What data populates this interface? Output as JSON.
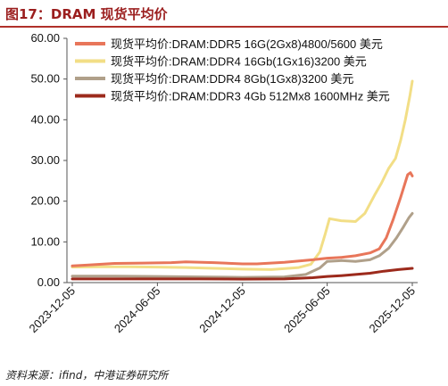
{
  "header": {
    "title": "图17：DRAM 现货平均价"
  },
  "footer": {
    "source": "资料来源：ifind，中港证券研究所"
  },
  "chart_data": {
    "type": "line",
    "title": "图17：DRAM 现货平均价",
    "xlabel": "",
    "ylabel": "",
    "ylim": [
      0,
      60
    ],
    "yticks": [
      "0.00",
      "10.00",
      "20.00",
      "30.00",
      "40.00",
      "50.00",
      "60.00"
    ],
    "xticks": [
      "2023-12-05",
      "2024-06-05",
      "2024-12-05",
      "2025-06-05",
      "2025-12-05"
    ],
    "grid": false,
    "legend_position": "top-right",
    "series": [
      {
        "name": "现货平均价:DRAM:DDR5 16G(2Gx8)4800/5600 美元",
        "color": "#e8765a",
        "width": 3,
        "points": [
          [
            "2023-12-05",
            4.1
          ],
          [
            "2024-01-05",
            4.3
          ],
          [
            "2024-03-05",
            4.7
          ],
          [
            "2024-05-05",
            4.8
          ],
          [
            "2024-07-05",
            4.9
          ],
          [
            "2024-08-05",
            5.1
          ],
          [
            "2024-10-05",
            4.9
          ],
          [
            "2024-12-05",
            4.6
          ],
          [
            "2025-01-05",
            4.6
          ],
          [
            "2025-03-05",
            5.0
          ],
          [
            "2025-05-05",
            5.6
          ],
          [
            "2025-06-05",
            6.0
          ],
          [
            "2025-07-05",
            6.2
          ],
          [
            "2025-08-05",
            6.6
          ],
          [
            "2025-09-05",
            7.3
          ],
          [
            "2025-09-25",
            8.3
          ],
          [
            "2025-10-10",
            11.0
          ],
          [
            "2025-10-25",
            15.5
          ],
          [
            "2025-11-10",
            21.0
          ],
          [
            "2025-11-25",
            26.5
          ],
          [
            "2025-12-01",
            27.0
          ],
          [
            "2025-12-05",
            26.2
          ]
        ]
      },
      {
        "name": "现货平均价:DRAM:DDR4 16Gb(1Gx16)3200 美元",
        "color": "#f2de86",
        "width": 3,
        "points": [
          [
            "2023-12-05",
            3.8
          ],
          [
            "2024-02-05",
            3.9
          ],
          [
            "2024-04-05",
            3.9
          ],
          [
            "2024-06-05",
            3.8
          ],
          [
            "2024-08-05",
            3.7
          ],
          [
            "2024-10-05",
            3.5
          ],
          [
            "2024-12-05",
            3.3
          ],
          [
            "2025-02-05",
            3.2
          ],
          [
            "2025-04-05",
            3.7
          ],
          [
            "2025-05-01",
            4.5
          ],
          [
            "2025-05-20",
            7.5
          ],
          [
            "2025-06-01",
            12.0
          ],
          [
            "2025-06-10",
            15.7
          ],
          [
            "2025-07-05",
            15.2
          ],
          [
            "2025-08-05",
            15.0
          ],
          [
            "2025-08-25",
            17.0
          ],
          [
            "2025-09-15",
            21.5
          ],
          [
            "2025-09-30",
            24.5
          ],
          [
            "2025-10-15",
            28.0
          ],
          [
            "2025-10-30",
            30.5
          ],
          [
            "2025-11-10",
            35.0
          ],
          [
            "2025-11-20",
            40.0
          ],
          [
            "2025-11-30",
            46.0
          ],
          [
            "2025-12-05",
            49.5
          ]
        ]
      },
      {
        "name": "现货平均价:DRAM:DDR4 8Gb(1Gx8)3200 美元",
        "color": "#b0a08a",
        "width": 3,
        "points": [
          [
            "2023-12-05",
            1.6
          ],
          [
            "2024-03-05",
            1.6
          ],
          [
            "2024-06-05",
            1.5
          ],
          [
            "2024-09-05",
            1.4
          ],
          [
            "2024-12-05",
            1.3
          ],
          [
            "2025-03-05",
            1.4
          ],
          [
            "2025-04-20",
            2.0
          ],
          [
            "2025-05-20",
            3.6
          ],
          [
            "2025-06-05",
            5.2
          ],
          [
            "2025-07-05",
            5.4
          ],
          [
            "2025-08-05",
            5.2
          ],
          [
            "2025-09-05",
            5.6
          ],
          [
            "2025-09-25",
            6.6
          ],
          [
            "2025-10-15",
            8.4
          ],
          [
            "2025-11-01",
            11.0
          ],
          [
            "2025-11-15",
            13.5
          ],
          [
            "2025-11-28",
            16.0
          ],
          [
            "2025-12-05",
            17.0
          ]
        ]
      },
      {
        "name": "现货平均价:DRAM:DDR3 4Gb 512Mx8 1600MHz 美元",
        "color": "#9c2a1c",
        "width": 3,
        "points": [
          [
            "2023-12-05",
            0.9
          ],
          [
            "2024-03-05",
            0.9
          ],
          [
            "2024-06-05",
            0.9
          ],
          [
            "2024-09-05",
            0.9
          ],
          [
            "2024-12-05",
            0.85
          ],
          [
            "2025-03-05",
            0.9
          ],
          [
            "2025-05-05",
            1.2
          ],
          [
            "2025-06-05",
            1.5
          ],
          [
            "2025-07-05",
            1.7
          ],
          [
            "2025-08-05",
            2.0
          ],
          [
            "2025-09-05",
            2.3
          ],
          [
            "2025-10-05",
            2.8
          ],
          [
            "2025-11-05",
            3.2
          ],
          [
            "2025-12-05",
            3.5
          ]
        ]
      }
    ]
  }
}
